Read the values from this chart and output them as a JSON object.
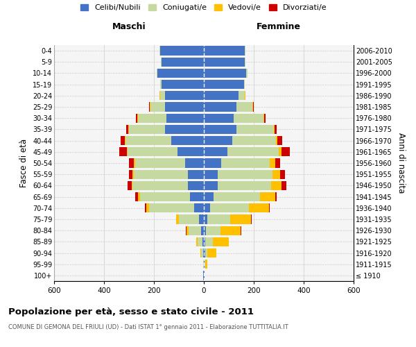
{
  "age_groups": [
    "100+",
    "95-99",
    "90-94",
    "85-89",
    "80-84",
    "75-79",
    "70-74",
    "65-69",
    "60-64",
    "55-59",
    "50-54",
    "45-49",
    "40-44",
    "35-39",
    "30-34",
    "25-29",
    "20-24",
    "15-19",
    "10-14",
    "5-9",
    "0-4"
  ],
  "birth_years": [
    "≤ 1910",
    "1911-1915",
    "1916-1920",
    "1921-1925",
    "1926-1930",
    "1931-1935",
    "1936-1940",
    "1941-1945",
    "1946-1950",
    "1951-1955",
    "1956-1960",
    "1961-1965",
    "1966-1970",
    "1971-1975",
    "1976-1980",
    "1981-1985",
    "1986-1990",
    "1991-1995",
    "1996-2000",
    "2001-2005",
    "2006-2010"
  ],
  "maschi": {
    "celibi": [
      2,
      1,
      4,
      5,
      10,
      20,
      40,
      55,
      65,
      65,
      75,
      105,
      130,
      155,
      150,
      155,
      155,
      170,
      185,
      170,
      175
    ],
    "coniugati": [
      0,
      2,
      8,
      20,
      50,
      80,
      180,
      200,
      220,
      215,
      200,
      200,
      185,
      145,
      115,
      60,
      20,
      5,
      5,
      2,
      2
    ],
    "vedovi": [
      0,
      0,
      2,
      5,
      10,
      10,
      10,
      10,
      5,
      5,
      5,
      3,
      2,
      2,
      2,
      2,
      2,
      0,
      0,
      0,
      0
    ],
    "divorziati": [
      0,
      0,
      0,
      1,
      1,
      2,
      5,
      10,
      15,
      15,
      20,
      30,
      15,
      10,
      5,
      2,
      1,
      0,
      0,
      0,
      0
    ]
  },
  "femmine": {
    "nubili": [
      2,
      3,
      5,
      5,
      8,
      15,
      25,
      40,
      55,
      55,
      70,
      95,
      115,
      130,
      120,
      130,
      140,
      160,
      170,
      165,
      165
    ],
    "coniugate": [
      0,
      2,
      10,
      30,
      60,
      90,
      155,
      185,
      215,
      220,
      195,
      205,
      175,
      150,
      120,
      65,
      25,
      5,
      5,
      2,
      2
    ],
    "vedove": [
      2,
      10,
      35,
      65,
      80,
      85,
      80,
      60,
      40,
      30,
      20,
      10,
      5,
      3,
      2,
      2,
      1,
      0,
      0,
      0,
      0
    ],
    "divorziate": [
      0,
      0,
      0,
      1,
      2,
      3,
      5,
      8,
      20,
      20,
      20,
      35,
      20,
      10,
      5,
      2,
      1,
      0,
      0,
      0,
      0
    ]
  },
  "colors": {
    "celibi": "#4472c4",
    "coniugati": "#c5d9a0",
    "vedovi": "#ffc000",
    "divorziati": "#cc0000"
  },
  "xlim": 600,
  "title": "Popolazione per età, sesso e stato civile - 2011",
  "subtitle": "COMUNE DI GEMONA DEL FRIULI (UD) - Dati ISTAT 1° gennaio 2011 - Elaborazione TUTTITALIA.IT",
  "ylabel_left": "Fasce di età",
  "ylabel_right": "Anni di nascita",
  "xlabel_maschi": "Maschi",
  "xlabel_femmine": "Femmine",
  "legend_labels": [
    "Celibi/Nubili",
    "Coniugati/e",
    "Vedovi/e",
    "Divorziati/e"
  ]
}
